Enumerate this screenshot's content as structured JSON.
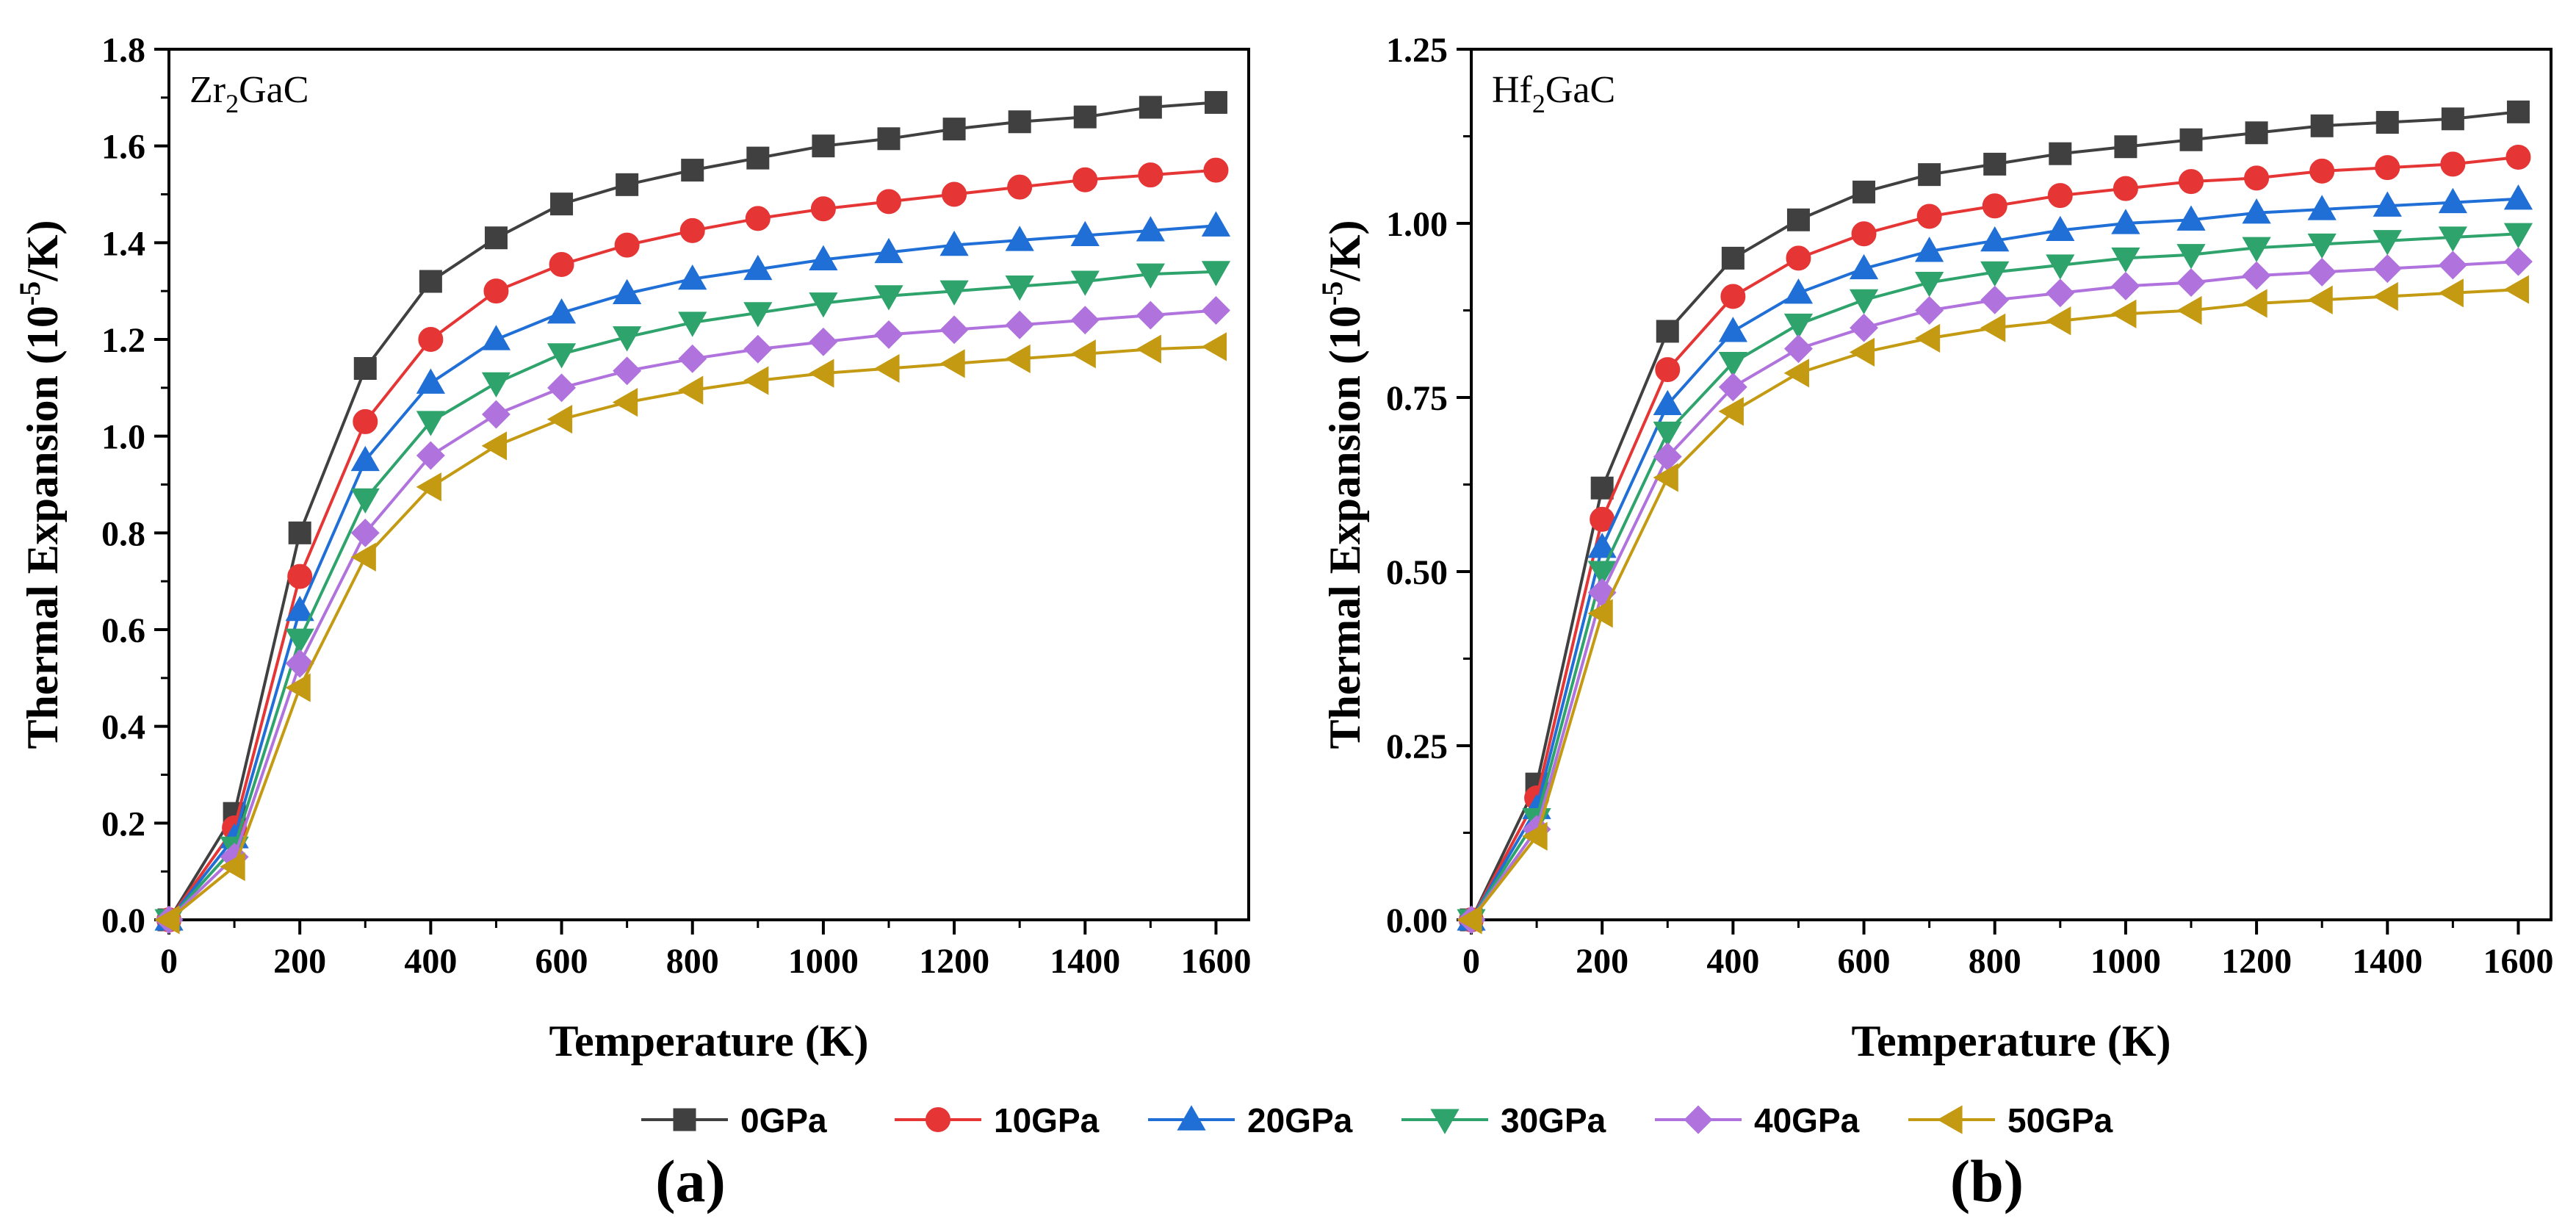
{
  "chart_data": [
    {
      "type": "line",
      "title": "",
      "annotation_main": "Zr",
      "annotation_sub": "2",
      "annotation_rest": "GaC",
      "panel_label": "(a)",
      "xlabel": "Temperature (K)",
      "ylabel_pre": "Thermal Expansion (10",
      "ylabel_sup": "-5",
      "ylabel_post": "/K)",
      "xlim": [
        0,
        1650
      ],
      "ylim": [
        0,
        1.8
      ],
      "xticks": [
        0,
        200,
        400,
        600,
        800,
        1000,
        1200,
        1400,
        1600
      ],
      "xtick_labels": [
        "0",
        "200",
        "400",
        "600",
        "800",
        "1000",
        "1200",
        "1400",
        "1600"
      ],
      "yticks": [
        0,
        0.2,
        0.4,
        0.6,
        0.8,
        1.0,
        1.2,
        1.4,
        1.6,
        1.8
      ],
      "ytick_labels": [
        "0.0",
        "0.2",
        "0.4",
        "0.6",
        "0.8",
        "1.0",
        "1.2",
        "1.4",
        "1.6",
        "1.8"
      ],
      "grid": false,
      "x": [
        0,
        100,
        200,
        300,
        400,
        500,
        600,
        700,
        800,
        900,
        1000,
        1100,
        1200,
        1300,
        1400,
        1500,
        1600
      ],
      "series": [
        {
          "name": "0GPa",
          "color": "#404040",
          "marker": "square",
          "values": [
            0,
            0.22,
            0.8,
            1.14,
            1.32,
            1.41,
            1.48,
            1.52,
            1.55,
            1.575,
            1.6,
            1.615,
            1.635,
            1.65,
            1.66,
            1.68,
            1.69
          ]
        },
        {
          "name": "10GPa",
          "color": "#e53535",
          "marker": "circle",
          "values": [
            0,
            0.19,
            0.71,
            1.03,
            1.2,
            1.3,
            1.355,
            1.395,
            1.425,
            1.45,
            1.47,
            1.485,
            1.5,
            1.515,
            1.53,
            1.54,
            1.55
          ]
        },
        {
          "name": "20GPa",
          "color": "#1f6fd6",
          "marker": "triangle-up",
          "values": [
            0,
            0.17,
            0.64,
            0.95,
            1.11,
            1.2,
            1.255,
            1.295,
            1.325,
            1.345,
            1.365,
            1.38,
            1.395,
            1.405,
            1.415,
            1.425,
            1.435
          ]
        },
        {
          "name": "30GPa",
          "color": "#2ea36b",
          "marker": "triangle-down",
          "values": [
            0,
            0.15,
            0.58,
            0.87,
            1.03,
            1.11,
            1.17,
            1.205,
            1.235,
            1.255,
            1.275,
            1.29,
            1.3,
            1.31,
            1.32,
            1.335,
            1.34
          ]
        },
        {
          "name": "40GPa",
          "color": "#b072dd",
          "marker": "diamond",
          "values": [
            0,
            0.13,
            0.53,
            0.8,
            0.96,
            1.045,
            1.1,
            1.135,
            1.16,
            1.18,
            1.195,
            1.21,
            1.22,
            1.23,
            1.24,
            1.25,
            1.26
          ]
        },
        {
          "name": "50GPa",
          "color": "#c49a12",
          "marker": "triangle-left",
          "values": [
            0,
            0.11,
            0.48,
            0.75,
            0.895,
            0.98,
            1.035,
            1.07,
            1.095,
            1.115,
            1.13,
            1.14,
            1.15,
            1.16,
            1.17,
            1.18,
            1.185
          ]
        }
      ]
    },
    {
      "type": "line",
      "title": "",
      "annotation_main": "Hf",
      "annotation_sub": "2",
      "annotation_rest": "GaC",
      "panel_label": "(b)",
      "xlabel": "Temperature (K)",
      "ylabel_pre": "Thermal Expansion (10",
      "ylabel_sup": "-5",
      "ylabel_post": "/K)",
      "xlim": [
        0,
        1650
      ],
      "ylim": [
        0,
        1.25
      ],
      "xticks": [
        0,
        200,
        400,
        600,
        800,
        1000,
        1200,
        1400,
        1600
      ],
      "xtick_labels": [
        "0",
        "200",
        "400",
        "600",
        "800",
        "1000",
        "1200",
        "1400",
        "1600"
      ],
      "yticks": [
        0,
        0.25,
        0.5,
        0.75,
        1.0,
        1.25
      ],
      "ytick_labels": [
        "0.00",
        "0.25",
        "0.50",
        "0.75",
        "1.00",
        "1.25"
      ],
      "grid": false,
      "x": [
        0,
        100,
        200,
        300,
        400,
        500,
        600,
        700,
        800,
        900,
        1000,
        1100,
        1200,
        1300,
        1400,
        1500,
        1600
      ],
      "series": [
        {
          "name": "0GPa",
          "color": "#404040",
          "marker": "square",
          "values": [
            0,
            0.195,
            0.62,
            0.845,
            0.95,
            1.005,
            1.045,
            1.07,
            1.085,
            1.1,
            1.11,
            1.12,
            1.13,
            1.14,
            1.145,
            1.15,
            1.16
          ]
        },
        {
          "name": "10GPa",
          "color": "#e53535",
          "marker": "circle",
          "values": [
            0,
            0.175,
            0.575,
            0.79,
            0.895,
            0.95,
            0.985,
            1.01,
            1.025,
            1.04,
            1.05,
            1.06,
            1.065,
            1.075,
            1.08,
            1.085,
            1.095
          ]
        },
        {
          "name": "20GPa",
          "color": "#1f6fd6",
          "marker": "triangle-up",
          "values": [
            0,
            0.16,
            0.535,
            0.74,
            0.845,
            0.9,
            0.935,
            0.96,
            0.975,
            0.99,
            1.0,
            1.005,
            1.015,
            1.02,
            1.025,
            1.03,
            1.035
          ]
        },
        {
          "name": "30GPa",
          "color": "#2ea36b",
          "marker": "triangle-down",
          "values": [
            0,
            0.145,
            0.5,
            0.7,
            0.8,
            0.855,
            0.89,
            0.915,
            0.93,
            0.94,
            0.95,
            0.955,
            0.965,
            0.97,
            0.975,
            0.98,
            0.985
          ]
        },
        {
          "name": "40GPa",
          "color": "#b072dd",
          "marker": "diamond",
          "values": [
            0,
            0.13,
            0.47,
            0.665,
            0.765,
            0.82,
            0.85,
            0.875,
            0.89,
            0.9,
            0.91,
            0.915,
            0.925,
            0.93,
            0.935,
            0.94,
            0.945
          ]
        },
        {
          "name": "50GPa",
          "color": "#c49a12",
          "marker": "triangle-left",
          "values": [
            0,
            0.12,
            0.44,
            0.635,
            0.73,
            0.785,
            0.815,
            0.835,
            0.85,
            0.86,
            0.87,
            0.875,
            0.885,
            0.89,
            0.895,
            0.9,
            0.905
          ]
        }
      ]
    }
  ],
  "legend": {
    "placement": "bottom-center",
    "items": [
      {
        "label": "0GPa",
        "color": "#404040",
        "marker": "square"
      },
      {
        "label": "10GPa",
        "color": "#e53535",
        "marker": "circle"
      },
      {
        "label": "20GPa",
        "color": "#1f6fd6",
        "marker": "triangle-up"
      },
      {
        "label": "30GPa",
        "color": "#2ea36b",
        "marker": "triangle-down"
      },
      {
        "label": "40GPa",
        "color": "#b072dd",
        "marker": "diamond"
      },
      {
        "label": "50GPa",
        "color": "#c49a12",
        "marker": "triangle-left"
      }
    ]
  }
}
